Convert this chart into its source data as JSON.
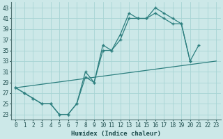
{
  "xlabel": "Humidex (Indice chaleur)",
  "bg_color": "#cce8e8",
  "grid_color": "#a8d4d4",
  "line_color": "#2d7f7f",
  "xlim": [
    -0.5,
    23.5
  ],
  "ylim": [
    22.0,
    44.0
  ],
  "xticks": [
    0,
    1,
    2,
    3,
    4,
    5,
    6,
    7,
    8,
    9,
    10,
    11,
    12,
    13,
    14,
    15,
    16,
    17,
    18,
    19,
    20,
    21,
    22,
    23
  ],
  "yticks": [
    23,
    25,
    27,
    29,
    31,
    33,
    35,
    37,
    39,
    41,
    43
  ],
  "curve1_x": [
    0,
    1,
    2,
    3,
    4,
    5,
    6,
    7,
    8,
    9,
    10,
    11,
    12,
    13,
    14,
    15,
    16,
    17,
    18,
    19,
    20,
    21,
    22,
    23
  ],
  "curve1_y": [
    28,
    27,
    26,
    25,
    25,
    23,
    23,
    25,
    31,
    29,
    36,
    35,
    38,
    42,
    41,
    41,
    43,
    42,
    41,
    40,
    33,
    36,
    null,
    null
  ],
  "curve2_x": [
    0,
    1,
    2,
    3,
    4,
    5,
    6,
    7,
    8,
    9,
    10,
    11,
    12,
    13,
    14,
    15,
    16,
    17,
    18,
    19,
    20,
    21,
    22,
    23
  ],
  "curve2_y": [
    28,
    27,
    26,
    25,
    25,
    23,
    23,
    25,
    30,
    29,
    35,
    35,
    37,
    41,
    41,
    41,
    42,
    41,
    40,
    40,
    33,
    null,
    null,
    null
  ],
  "line3_x": [
    0,
    23
  ],
  "line3_y": [
    28,
    33
  ],
  "figwidth": 3.2,
  "figheight": 2.0,
  "dpi": 100
}
